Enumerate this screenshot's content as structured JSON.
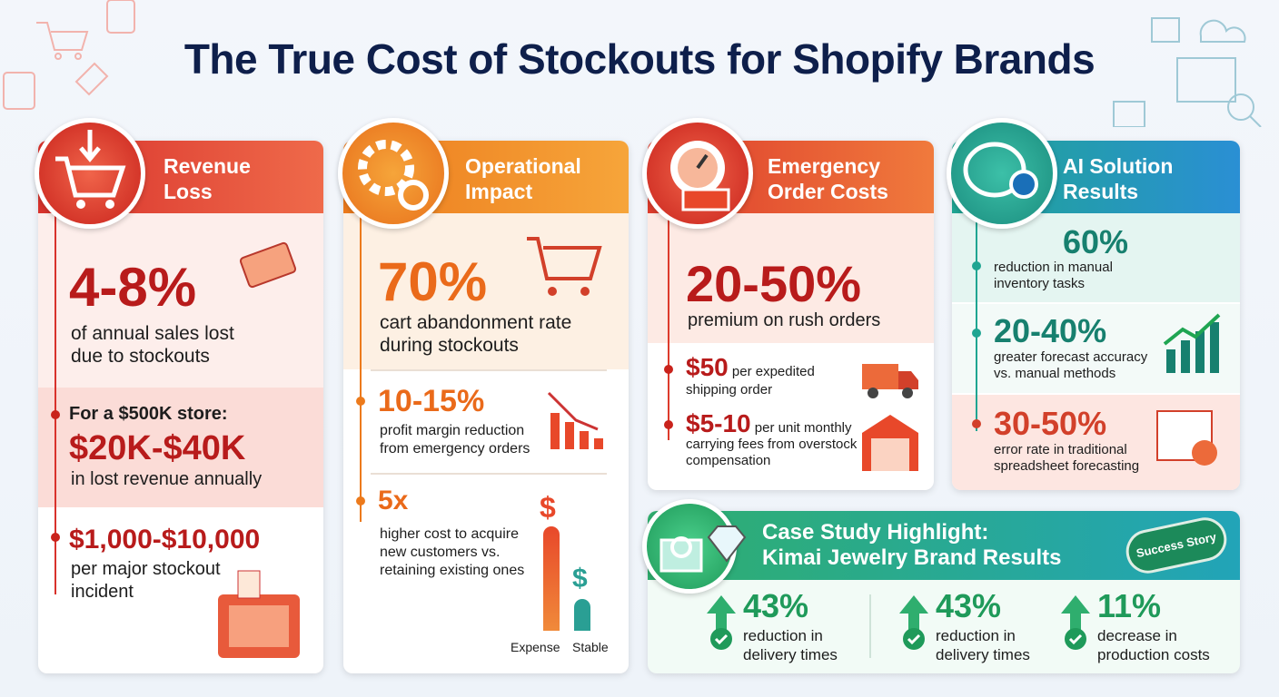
{
  "title": "The True Cost of Stockouts for Shopify Brands",
  "revenue_loss": {
    "title": "Revenue Loss",
    "stat": "4-8%",
    "stat_text": "of annual sales lost due to stockouts",
    "example_label": "For a $500K store:",
    "example_value": "$20K-$40K",
    "example_text": "in lost revenue annually",
    "incident_value": "$1,000-$10,000",
    "incident_text": "per major stockout incident"
  },
  "operational_impact": {
    "title": "Operational Impact",
    "stat": "70%",
    "stat_text": "cart abandonment rate during stockouts",
    "margin_value": "10-15%",
    "margin_text": "profit margin reduction from emergency orders",
    "cost_value": "5x",
    "cost_text": "higher cost to acquire new customers vs. retaining existing ones",
    "bar_symbols": [
      "$",
      "$"
    ],
    "bar_labels": [
      "Expense",
      "Stable"
    ]
  },
  "emergency_order_costs": {
    "title": "Emergency Order Costs",
    "stat": "20-50%",
    "stat_text": "premium on rush orders",
    "shipping_value": "$50",
    "shipping_text": "per expedited shipping order",
    "carrying_value": "$5-10",
    "carrying_text": "per unit monthly carrying fees from overstock compensation"
  },
  "ai_solution_results": {
    "title": "AI Solution Results",
    "items": [
      {
        "value": "60%",
        "text": "reduction in manual inventory tasks"
      },
      {
        "value": "20-40%",
        "text": "greater forecast accuracy vs. manual methods"
      },
      {
        "value": "30-50%",
        "text": "error rate in traditional spreadsheet forecasting"
      }
    ]
  },
  "case_study": {
    "title": [
      "Case Study Highlight:",
      "Kimai Jewelry Brand Results"
    ],
    "badge": "Success Story",
    "results": [
      {
        "value": "43%",
        "text": "reduction in delivery times"
      },
      {
        "value": "43%",
        "text": "reduction in delivery times"
      },
      {
        "value": "11%",
        "text": "decrease in production costs"
      }
    ]
  }
}
